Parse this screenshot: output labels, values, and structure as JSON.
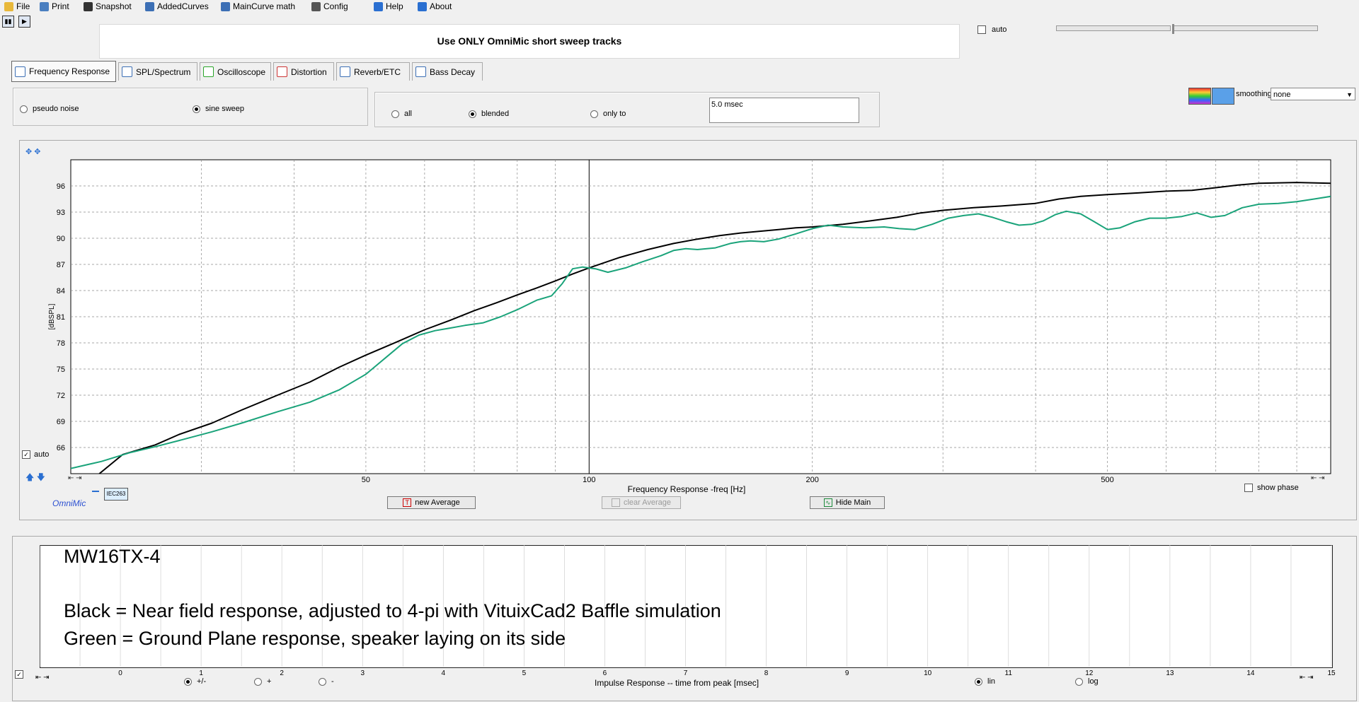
{
  "menu": {
    "items": [
      {
        "id": "file",
        "label": "File",
        "icon": "folder-icon",
        "x": 6,
        "color": "#e8b83a"
      },
      {
        "id": "print",
        "label": "Print",
        "icon": "printer-icon",
        "x": 56,
        "color": "#4a7fc0"
      },
      {
        "id": "snapshot",
        "label": "Snapshot",
        "icon": "camera-icon",
        "x": 118,
        "color": "#333333"
      },
      {
        "id": "addedcurves",
        "label": "AddedCurves",
        "icon": "curves-icon",
        "x": 205,
        "color": "#3c6fb5"
      },
      {
        "id": "maincurve",
        "label": "MainCurve math",
        "icon": "calculator-icon",
        "x": 312,
        "color": "#3c6fb5"
      },
      {
        "id": "config",
        "label": "Config",
        "icon": "wrench-icon",
        "x": 440,
        "color": "#555555"
      },
      {
        "id": "help",
        "label": "Help",
        "icon": "help-icon",
        "x": 528,
        "color": "#2a6fd1"
      },
      {
        "id": "about",
        "label": "About",
        "icon": "chat-icon",
        "x": 590,
        "color": "#2a6fd1"
      }
    ]
  },
  "notice": "Use ONLY OmniMic short sweep tracks",
  "top_auto_label": "auto",
  "tabs": [
    {
      "label": "Frequency Response",
      "icon": "freq-response-icon",
      "active": true
    },
    {
      "label": "SPL/Spectrum",
      "icon": "spl-icon",
      "active": false
    },
    {
      "label": "Oscilloscope",
      "icon": "scope-icon",
      "active": false
    },
    {
      "label": "Distortion",
      "icon": "distortion-icon",
      "active": false
    },
    {
      "label": "Reverb/ETC",
      "icon": "reverb-icon",
      "active": false
    },
    {
      "label": "Bass Decay",
      "icon": "bass-decay-icon",
      "active": false
    }
  ],
  "source": {
    "pseudo_noise": "pseudo noise",
    "sine_sweep": "sine sweep"
  },
  "gating": {
    "all": "all",
    "blended": "blended",
    "only_to": "only to",
    "window_value": "5.0 msec"
  },
  "smoothing": {
    "label": "smoothing",
    "value": "none"
  },
  "freq_panel": {
    "auto_label": "auto",
    "show_phase": "show phase",
    "brand": "OmniMic",
    "legend_chip": "IEC263",
    "buttons": {
      "new_average": "new Average",
      "clear_average": "clear Average",
      "hide_main": "Hide Main"
    }
  },
  "impulse_panel": {
    "x_axis_label": "Impulse Response  -- time from peak [msec]",
    "polarity": {
      "both": "+/-",
      "plus": "+",
      "minus": "-"
    },
    "scale": {
      "lin": "lin",
      "log": "log"
    },
    "x_ticks": [
      0,
      1,
      2,
      3,
      4,
      5,
      6,
      7,
      8,
      9,
      10,
      11,
      12,
      13,
      14,
      15
    ],
    "x_range": [
      -1,
      15
    ]
  },
  "notes": {
    "title": "MW16TX-4",
    "line1": "Black = Near field response, adjusted to 4-pi with VituixCad2 Baffle simulation",
    "line2": "Green = Ground Plane response, speaker laying on its side"
  },
  "chart_data": {
    "type": "line",
    "xscale": "log",
    "xlim": [
      20,
      1000
    ],
    "ylim": [
      63,
      99
    ],
    "xlabel": "Frequency Response -freq [Hz]",
    "ylabel": "[dBSPL]",
    "x_tick_labels": [
      {
        "value": 50,
        "label": "50"
      },
      {
        "value": 100,
        "label": "100"
      },
      {
        "value": 200,
        "label": "200"
      },
      {
        "value": 500,
        "label": "500"
      }
    ],
    "y_ticks": [
      66,
      69,
      72,
      75,
      78,
      81,
      84,
      87,
      90,
      93,
      96
    ],
    "grid": true,
    "series": [
      {
        "color": "#000000",
        "points": [
          [
            21.5,
            62.5
          ],
          [
            23.5,
            65.2
          ],
          [
            26,
            66.3
          ],
          [
            28,
            67.5
          ],
          [
            31,
            68.8
          ],
          [
            34,
            70.3
          ],
          [
            38,
            72.0
          ],
          [
            42,
            73.5
          ],
          [
            46,
            75.2
          ],
          [
            50,
            76.6
          ],
          [
            55,
            78.1
          ],
          [
            60,
            79.5
          ],
          [
            65,
            80.6
          ],
          [
            70,
            81.7
          ],
          [
            75,
            82.6
          ],
          [
            80,
            83.5
          ],
          [
            85,
            84.3
          ],
          [
            90,
            85.1
          ],
          [
            95,
            85.9
          ],
          [
            100,
            86.6
          ],
          [
            110,
            87.8
          ],
          [
            120,
            88.7
          ],
          [
            130,
            89.4
          ],
          [
            140,
            89.9
          ],
          [
            150,
            90.3
          ],
          [
            160,
            90.6
          ],
          [
            170,
            90.8
          ],
          [
            180,
            91.0
          ],
          [
            190,
            91.2
          ],
          [
            200,
            91.3
          ],
          [
            220,
            91.6
          ],
          [
            240,
            92.0
          ],
          [
            260,
            92.4
          ],
          [
            280,
            92.9
          ],
          [
            300,
            93.2
          ],
          [
            330,
            93.5
          ],
          [
            360,
            93.7
          ],
          [
            400,
            94.0
          ],
          [
            430,
            94.5
          ],
          [
            460,
            94.8
          ],
          [
            500,
            95.0
          ],
          [
            550,
            95.2
          ],
          [
            600,
            95.4
          ],
          [
            650,
            95.5
          ],
          [
            700,
            95.8
          ],
          [
            750,
            96.1
          ],
          [
            800,
            96.3
          ],
          [
            900,
            96.4
          ],
          [
            1000,
            96.3
          ]
        ]
      },
      {
        "color": "#1aa37a",
        "points": [
          [
            20,
            63.6
          ],
          [
            22,
            64.4
          ],
          [
            24,
            65.4
          ],
          [
            26,
            66.1
          ],
          [
            28,
            66.8
          ],
          [
            31,
            67.8
          ],
          [
            34,
            68.8
          ],
          [
            38,
            70.1
          ],
          [
            42,
            71.2
          ],
          [
            46,
            72.6
          ],
          [
            50,
            74.4
          ],
          [
            53,
            76.2
          ],
          [
            56,
            77.9
          ],
          [
            59,
            78.9
          ],
          [
            62,
            79.4
          ],
          [
            65,
            79.7
          ],
          [
            68,
            80.0
          ],
          [
            72,
            80.3
          ],
          [
            76,
            81.0
          ],
          [
            80,
            81.8
          ],
          [
            85,
            82.9
          ],
          [
            89,
            83.4
          ],
          [
            92,
            84.8
          ],
          [
            95,
            86.5
          ],
          [
            98,
            86.7
          ],
          [
            102,
            86.5
          ],
          [
            106,
            86.1
          ],
          [
            112,
            86.6
          ],
          [
            118,
            87.3
          ],
          [
            125,
            88.0
          ],
          [
            130,
            88.6
          ],
          [
            135,
            88.8
          ],
          [
            140,
            88.7
          ],
          [
            148,
            88.9
          ],
          [
            155,
            89.4
          ],
          [
            160,
            89.6
          ],
          [
            165,
            89.7
          ],
          [
            172,
            89.6
          ],
          [
            180,
            89.9
          ],
          [
            190,
            90.5
          ],
          [
            200,
            91.1
          ],
          [
            210,
            91.5
          ],
          [
            220,
            91.3
          ],
          [
            235,
            91.2
          ],
          [
            250,
            91.3
          ],
          [
            262,
            91.1
          ],
          [
            275,
            91.0
          ],
          [
            290,
            91.6
          ],
          [
            305,
            92.3
          ],
          [
            320,
            92.6
          ],
          [
            335,
            92.8
          ],
          [
            350,
            92.4
          ],
          [
            365,
            91.9
          ],
          [
            380,
            91.5
          ],
          [
            395,
            91.6
          ],
          [
            410,
            92.0
          ],
          [
            425,
            92.7
          ],
          [
            440,
            93.1
          ],
          [
            460,
            92.8
          ],
          [
            480,
            91.9
          ],
          [
            500,
            91.0
          ],
          [
            520,
            91.2
          ],
          [
            545,
            91.9
          ],
          [
            570,
            92.3
          ],
          [
            600,
            92.3
          ],
          [
            630,
            92.5
          ],
          [
            660,
            92.9
          ],
          [
            690,
            92.4
          ],
          [
            720,
            92.6
          ],
          [
            760,
            93.5
          ],
          [
            800,
            93.9
          ],
          [
            850,
            94.0
          ],
          [
            900,
            94.2
          ],
          [
            950,
            94.5
          ],
          [
            1000,
            94.8
          ]
        ]
      }
    ]
  }
}
